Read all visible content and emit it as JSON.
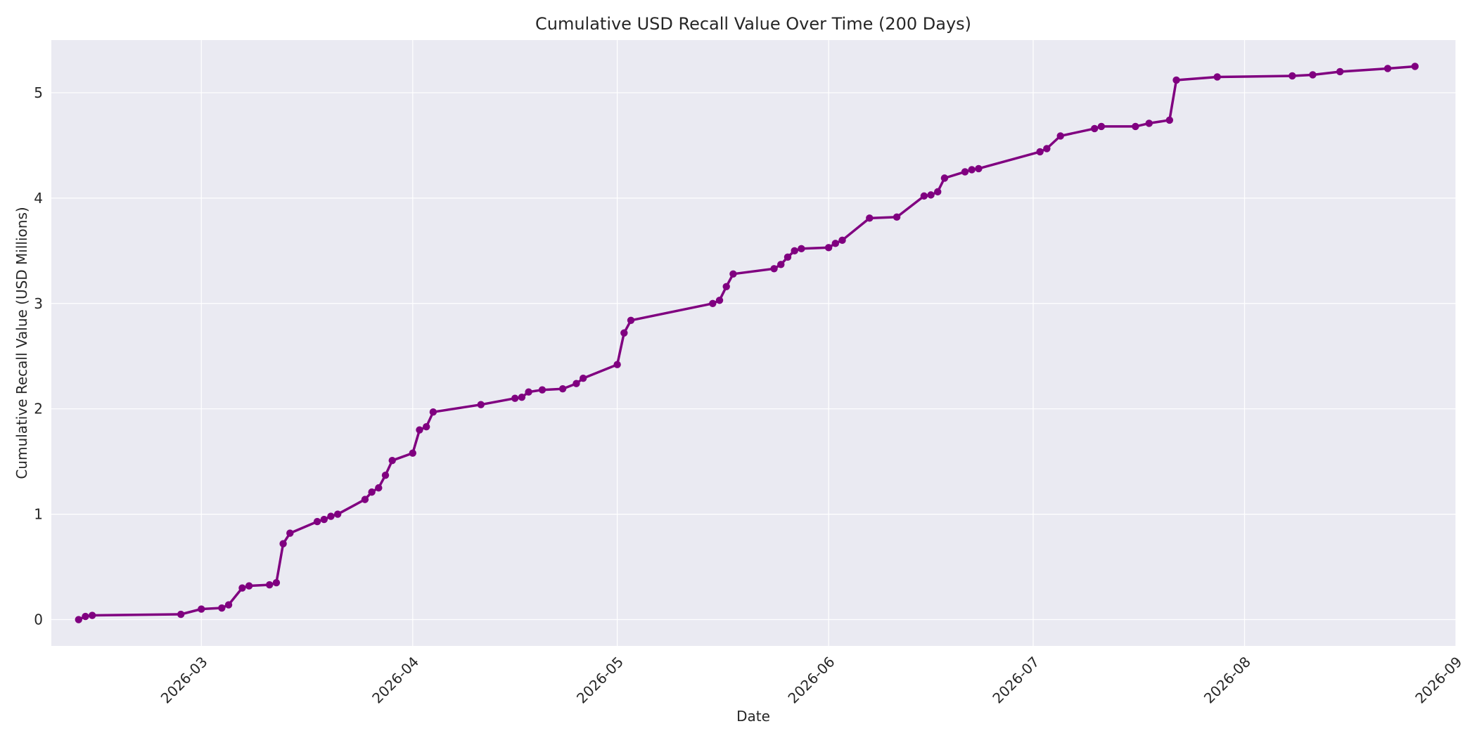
{
  "chart_data": {
    "type": "line",
    "title": "Cumulative USD Recall Value Over Time (200 Days)",
    "xlabel": "Date",
    "ylabel": "Cumulative Recall Value (USD Millions)",
    "xlim": [
      "2026-02-07",
      "2026-09-01"
    ],
    "ylim": [
      -0.25,
      5.5
    ],
    "grid": true,
    "x_ticks": [
      "2026-03-01",
      "2026-04-01",
      "2026-05-01",
      "2026-06-01",
      "2026-07-01",
      "2026-08-01",
      "2026-09-01"
    ],
    "x_tick_labels": [
      "2026-03",
      "2026-04",
      "2026-05",
      "2026-06",
      "2026-07",
      "2026-08",
      "2026-09"
    ],
    "y_ticks": [
      0,
      1,
      2,
      3,
      4,
      5
    ],
    "y_tick_labels": [
      "0",
      "1",
      "2",
      "3",
      "4",
      "5"
    ],
    "colors": {
      "line": "#800080",
      "plot_bg": "#eaeaf2",
      "grid": "#ffffff"
    },
    "series": [
      {
        "x": [
          "2026-02-11",
          "2026-02-12",
          "2026-02-13",
          "2026-02-26",
          "2026-03-01",
          "2026-03-04",
          "2026-03-05",
          "2026-03-07",
          "2026-03-08",
          "2026-03-11",
          "2026-03-12",
          "2026-03-13",
          "2026-03-14",
          "2026-03-18",
          "2026-03-19",
          "2026-03-20",
          "2026-03-21",
          "2026-03-25",
          "2026-03-26",
          "2026-03-27",
          "2026-03-28",
          "2026-03-29",
          "2026-04-01",
          "2026-04-02",
          "2026-04-03",
          "2026-04-04",
          "2026-04-11",
          "2026-04-16",
          "2026-04-17",
          "2026-04-18",
          "2026-04-20",
          "2026-04-23",
          "2026-04-25",
          "2026-04-26",
          "2026-05-01",
          "2026-05-02",
          "2026-05-03",
          "2026-05-15",
          "2026-05-16",
          "2026-05-17",
          "2026-05-18",
          "2026-05-24",
          "2026-05-25",
          "2026-05-26",
          "2026-05-27",
          "2026-05-28",
          "2026-06-01",
          "2026-06-02",
          "2026-06-03",
          "2026-06-07",
          "2026-06-11",
          "2026-06-15",
          "2026-06-16",
          "2026-06-17",
          "2026-06-18",
          "2026-06-21",
          "2026-06-22",
          "2026-06-23",
          "2026-07-02",
          "2026-07-03",
          "2026-07-05",
          "2026-07-10",
          "2026-07-11",
          "2026-07-16",
          "2026-07-18",
          "2026-07-21",
          "2026-07-22",
          "2026-07-28",
          "2026-08-08",
          "2026-08-11",
          "2026-08-15",
          "2026-08-22",
          "2026-08-26"
        ],
        "y": [
          0.0,
          0.03,
          0.04,
          0.05,
          0.1,
          0.11,
          0.14,
          0.3,
          0.32,
          0.33,
          0.35,
          0.72,
          0.82,
          0.93,
          0.95,
          0.98,
          1.0,
          1.14,
          1.21,
          1.25,
          1.37,
          1.51,
          1.58,
          1.8,
          1.83,
          1.97,
          2.04,
          2.1,
          2.11,
          2.16,
          2.18,
          2.19,
          2.24,
          2.29,
          2.42,
          2.72,
          2.84,
          3.0,
          3.03,
          3.16,
          3.28,
          3.33,
          3.37,
          3.44,
          3.5,
          3.52,
          3.53,
          3.57,
          3.6,
          3.81,
          3.82,
          4.02,
          4.03,
          4.06,
          4.19,
          4.25,
          4.27,
          4.28,
          4.44,
          4.47,
          4.59,
          4.66,
          4.68,
          4.68,
          4.71,
          4.74,
          5.12,
          5.15,
          5.16,
          5.17,
          5.2,
          5.23,
          5.25
        ]
      }
    ]
  }
}
